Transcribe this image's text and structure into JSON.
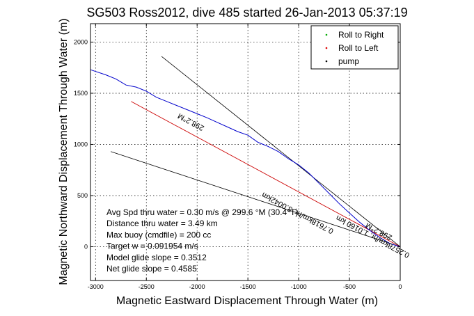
{
  "chart_data": {
    "type": "line",
    "title": "SG503 Ross2012, dive 485 started 26-Jan-2013 05:37:19",
    "xlabel": "Magnetic Eastward Displacement Through Water (m)",
    "ylabel": "Magnetic Northward Displacement Through Water (m)",
    "xlim": [
      -3050,
      0
    ],
    "ylim": [
      -330,
      2180
    ],
    "grid": true,
    "x_ticks": [
      {
        "value": -3000,
        "label": "-3000"
      },
      {
        "value": -2500,
        "label": "-2500"
      },
      {
        "value": -2000,
        "label": "-2000"
      },
      {
        "value": -1500,
        "label": "-1500"
      },
      {
        "value": -1000,
        "label": "-1000"
      },
      {
        "value": -500,
        "label": "-500"
      },
      {
        "value": 0,
        "label": "0"
      }
    ],
    "y_ticks": [
      {
        "value": 0,
        "label": "0"
      },
      {
        "value": 500,
        "label": "500"
      },
      {
        "value": 1000,
        "label": "1000"
      },
      {
        "value": 1500,
        "label": "1500"
      },
      {
        "value": 2000,
        "label": "2000"
      }
    ],
    "legend_position": "top-right",
    "legend": [
      {
        "label": "Roll to Right",
        "marker": "dot",
        "color": "#00aa00"
      },
      {
        "label": "Roll to Left",
        "marker": "dot",
        "color": "#dd0000"
      },
      {
        "label": "pump",
        "marker": "dot",
        "color": "#000000"
      }
    ],
    "track": {
      "color": "#0000cc",
      "x": [
        -3050,
        -2900,
        -2800,
        -2700,
        -2600,
        -2500,
        -2400,
        -2300,
        -2200,
        -2100,
        -2000,
        -1900,
        -1800,
        -1700,
        -1600,
        -1500,
        -1400,
        -1300,
        -1200,
        -1100,
        -1000,
        -900,
        -800,
        -700,
        -600,
        -500,
        -400,
        -300,
        -200,
        -100,
        0
      ],
      "y": [
        1730,
        1680,
        1640,
        1580,
        1560,
        1520,
        1460,
        1420,
        1380,
        1340,
        1300,
        1260,
        1215,
        1170,
        1125,
        1090,
        1020,
        980,
        930,
        860,
        800,
        720,
        620,
        520,
        420,
        330,
        240,
        160,
        90,
        30,
        0
      ]
    },
    "mean_track": {
      "color": "#cc0000",
      "x": [
        -2650,
        0
      ],
      "y": [
        1420,
        0
      ]
    },
    "reference_lines": [
      {
        "color": "#000000",
        "x": [
          -2350,
          0
        ],
        "y": [
          1860,
          0
        ]
      },
      {
        "color": "#000000",
        "x": [
          -2850,
          0
        ],
        "y": [
          930,
          0
        ]
      }
    ],
    "annotations": [
      {
        "text": "298.2°M",
        "x": -2050,
        "y": 1240,
        "angle_deg": 28
      },
      {
        "text": "0.7618km/hr, 3.0042km",
        "x": -1000,
        "y": 350,
        "angle_deg": 28
      },
      {
        "text": "298.2°M",
        "x": -200,
        "y": 170,
        "angle_deg": 28
      },
      {
        "text": "0.2578km/hr, 1.0160 km",
        "x": -260,
        "y": 120,
        "angle_deg": 28
      }
    ],
    "info_text": [
      "Avg Spd thru water =  0.30 m/s @ 299.6  °M (30.4°T)",
      "Distance thru water =  3.49 km",
      "Max buoy (cmdfile) = 200 cc",
      "Target w = 0.091954 m/s",
      "Model glide slope = 0.3512",
      "Net glide slope = 0.4585"
    ]
  }
}
